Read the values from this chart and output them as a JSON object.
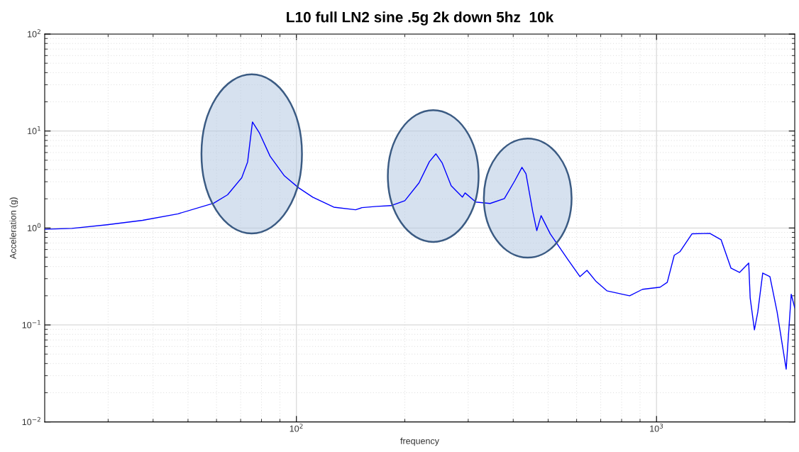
{
  "chart_data": {
    "type": "line",
    "title": "L10 full LN2 sine .5g 2k down 5hz  10k",
    "xlabel": "frequency",
    "ylabel": "Acceleration (g)",
    "log": "xy",
    "grid": true,
    "legend": false,
    "marker": "none",
    "line_style": "solid",
    "xlim": [
      20,
      2420
    ],
    "ylim": [
      0.01,
      100
    ],
    "xticks": [
      {
        "value": 30,
        "label": null
      },
      {
        "value": 40,
        "label": null
      },
      {
        "value": 50,
        "label": null
      },
      {
        "value": 60,
        "label": null
      },
      {
        "value": 70,
        "label": null
      },
      {
        "value": 80,
        "label": null
      },
      {
        "value": 90,
        "label": null
      },
      {
        "value": 100,
        "label": "10$^{2}$"
      },
      {
        "value": 200,
        "label": null
      },
      {
        "value": 300,
        "label": null
      },
      {
        "value": 400,
        "label": null
      },
      {
        "value": 500,
        "label": null
      },
      {
        "value": 600,
        "label": null
      },
      {
        "value": 700,
        "label": null
      },
      {
        "value": 800,
        "label": null
      },
      {
        "value": 900,
        "label": null
      },
      {
        "value": 1000,
        "label": "10$^{3}$"
      },
      {
        "value": 2000,
        "label": null
      }
    ],
    "yticks": [
      {
        "value": 0.01,
        "label": "10$^{−2}$"
      },
      {
        "value": 0.02,
        "label": null
      },
      {
        "value": 0.03,
        "label": null
      },
      {
        "value": 0.04,
        "label": null
      },
      {
        "value": 0.05,
        "label": null
      },
      {
        "value": 0.06,
        "label": null
      },
      {
        "value": 0.07,
        "label": null
      },
      {
        "value": 0.08,
        "label": null
      },
      {
        "value": 0.09,
        "label": null
      },
      {
        "value": 0.1,
        "label": "10$^{−1}$"
      },
      {
        "value": 0.2,
        "label": null
      },
      {
        "value": 0.3,
        "label": null
      },
      {
        "value": 0.4,
        "label": null
      },
      {
        "value": 0.5,
        "label": null
      },
      {
        "value": 0.6,
        "label": null
      },
      {
        "value": 0.7,
        "label": null
      },
      {
        "value": 0.8,
        "label": null
      },
      {
        "value": 0.9,
        "label": null
      },
      {
        "value": 1,
        "label": "10$^{0}$"
      },
      {
        "value": 2,
        "label": null
      },
      {
        "value": 3,
        "label": null
      },
      {
        "value": 4,
        "label": null
      },
      {
        "value": 5,
        "label": null
      },
      {
        "value": 6,
        "label": null
      },
      {
        "value": 7,
        "label": null
      },
      {
        "value": 8,
        "label": null
      },
      {
        "value": 9,
        "label": null
      },
      {
        "value": 10,
        "label": "10$^{1}$"
      },
      {
        "value": 20,
        "label": null
      },
      {
        "value": 30,
        "label": null
      },
      {
        "value": 40,
        "label": null
      },
      {
        "value": 50,
        "label": null
      },
      {
        "value": 60,
        "label": null
      },
      {
        "value": 70,
        "label": null
      },
      {
        "value": 80,
        "label": null
      },
      {
        "value": 90,
        "label": null
      },
      {
        "value": 100,
        "label": "10$^{2}$"
      }
    ],
    "series": [
      {
        "color": "#0000ff",
        "x": [
          20,
          23.8,
          29.8,
          37.4,
          46.9,
          58.9,
          64.4,
          70.5,
          73.2,
          75.5,
          79,
          84.5,
          92.6,
          101.4,
          111,
          127,
          146,
          152,
          167,
          183,
          200,
          219,
          234,
          244,
          254,
          269,
          289,
          294,
          315,
          345,
          378,
          404,
          423,
          434,
          453,
          465,
          478,
          507,
          568,
          613,
          641,
          680,
          728,
          842,
          914,
          1023,
          1071,
          1120,
          1161,
          1254,
          1406,
          1511,
          1610,
          1700,
          1803,
          1820,
          1870,
          1911,
          1972,
          2065,
          2162,
          2291,
          2366,
          2420
        ],
        "values": [
          0.97,
          0.99,
          1.08,
          1.2,
          1.4,
          1.8,
          2.2,
          3.3,
          4.8,
          12.4,
          9.5,
          5.5,
          3.45,
          2.6,
          2.08,
          1.64,
          1.54,
          1.62,
          1.67,
          1.7,
          1.91,
          2.92,
          4.83,
          5.82,
          4.68,
          2.73,
          2.08,
          2.3,
          1.85,
          1.79,
          2.01,
          3.07,
          4.22,
          3.63,
          1.49,
          0.94,
          1.34,
          0.87,
          0.47,
          0.315,
          0.366,
          0.28,
          0.225,
          0.2,
          0.233,
          0.245,
          0.275,
          0.523,
          0.569,
          0.87,
          0.88,
          0.757,
          0.385,
          0.348,
          0.434,
          0.19,
          0.089,
          0.136,
          0.343,
          0.315,
          0.136,
          0.035,
          0.207,
          0.15
        ]
      }
    ]
  }
}
